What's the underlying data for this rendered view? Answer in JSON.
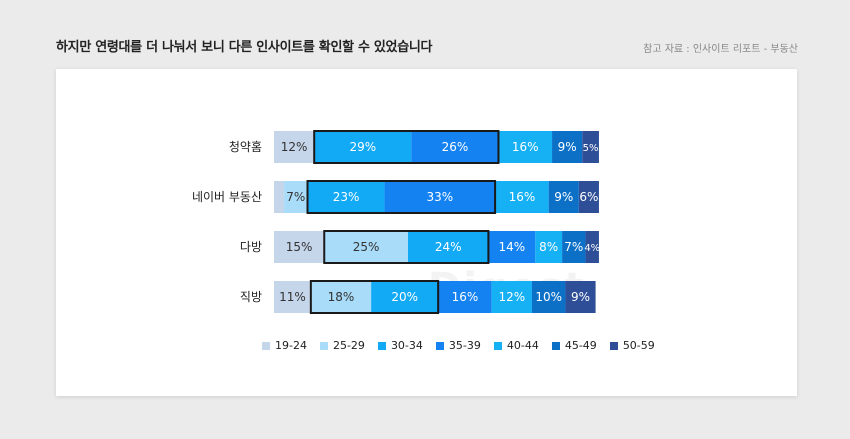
{
  "header": {
    "title": "하지만 연령대를 더 나눠서 보니 다른 인사이트를 확인할 수 있었습니다",
    "source": "참고 자료 : 인사이트 리포트 - 부동산"
  },
  "watermark": "Digest",
  "chart_data": {
    "type": "bar",
    "orientation": "horizontal",
    "stacked": true,
    "categories": [
      "청약홈",
      "네이버 부동산",
      "다방",
      "직방"
    ],
    "series": [
      {
        "name": "19-24",
        "color": "#c5d5ea",
        "values": [
          12,
          3,
          15,
          11
        ]
      },
      {
        "name": "25-29",
        "color": "#a9dcf9",
        "values": [
          0,
          7,
          25,
          18
        ]
      },
      {
        "name": "30-34",
        "color": "#12a9f5",
        "values": [
          29,
          23,
          24,
          20
        ]
      },
      {
        "name": "35-39",
        "color": "#1482f0",
        "values": [
          26,
          33,
          14,
          16
        ]
      },
      {
        "name": "40-44",
        "color": "#16b1f4",
        "values": [
          16,
          16,
          8,
          12
        ]
      },
      {
        "name": "45-49",
        "color": "#0c70c7",
        "values": [
          9,
          9,
          7,
          10
        ]
      },
      {
        "name": "50-59",
        "color": "#2e4f97",
        "values": [
          5,
          6,
          4,
          9
        ]
      }
    ],
    "value_labels": [
      [
        "12%",
        "",
        "29%",
        "26%",
        "16%",
        "9%",
        "5%"
      ],
      [
        "",
        "7%",
        "23%",
        "33%",
        "16%",
        "9%",
        "6%"
      ],
      [
        "15%",
        "25%",
        "24%",
        "14%",
        "8%",
        "7%",
        "4%"
      ],
      [
        "11%",
        "18%",
        "20%",
        "16%",
        "12%",
        "10%",
        "9%"
      ]
    ],
    "highlight_ranges": [
      [
        2,
        3
      ],
      [
        2,
        3
      ],
      [
        1,
        2
      ],
      [
        1,
        2
      ]
    ],
    "legend_position": "bottom",
    "grid": false
  }
}
